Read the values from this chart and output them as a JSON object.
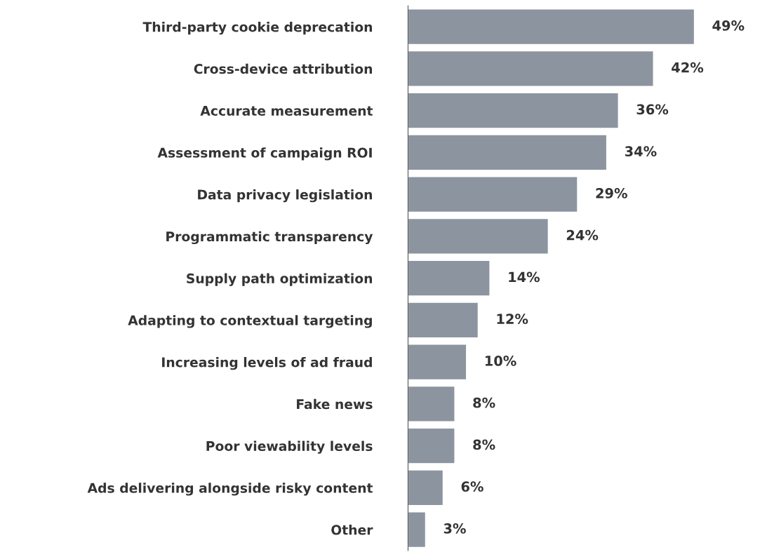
{
  "chart_data": {
    "type": "bar",
    "orientation": "horizontal",
    "categories": [
      "Third-party cookie deprecation",
      "Cross-device attribution",
      "Accurate measurement",
      "Assessment of campaign ROI",
      "Data privacy legislation",
      "Programmatic transparency",
      "Supply path optimization",
      "Adapting to contextual targeting",
      "Increasing levels of ad fraud",
      "Fake news",
      "Poor viewability levels",
      "Ads delivering alongside risky content",
      "Other"
    ],
    "values": [
      49,
      42,
      36,
      34,
      29,
      24,
      14,
      12,
      10,
      8,
      8,
      6,
      3
    ],
    "value_labels": [
      "49%",
      "42%",
      "36%",
      "34%",
      "29%",
      "24%",
      "14%",
      "12%",
      "10%",
      "8%",
      "8%",
      "6%",
      "3%"
    ],
    "color": "#8c949f",
    "tick_labels": "y",
    "grid": false,
    "legend": false
  }
}
